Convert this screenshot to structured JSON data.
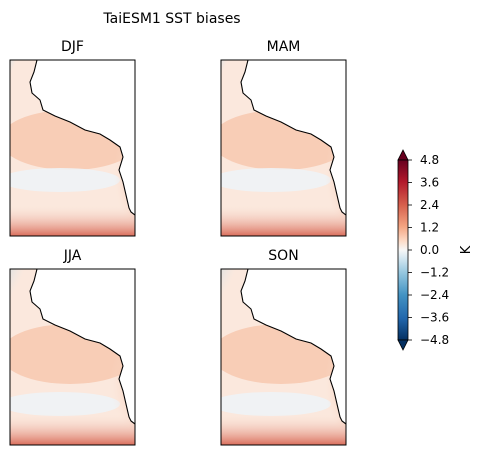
{
  "chart_data": {
    "type": "heatmap",
    "title": "TaiESM1 SST biases",
    "panels": [
      {
        "title": "DJF"
      },
      {
        "title": "MAM"
      },
      {
        "title": "JJA"
      },
      {
        "title": "SON"
      }
    ],
    "colorbar": {
      "label": "K",
      "ticks": [
        "4.8",
        "3.6",
        "2.4",
        "1.2",
        "0.0",
        "−1.2",
        "−2.4",
        "−3.6",
        "−4.8"
      ],
      "range": [
        -4.8,
        4.8
      ],
      "extend": "both",
      "colormap": "RdBu_r",
      "levels": 24
    },
    "colors": {
      "neg_strong": "#053061",
      "neg": "#4393c3",
      "neutral": "#f7f7f7",
      "pos": "#f4a582",
      "pos_strong": "#67001f"
    }
  }
}
